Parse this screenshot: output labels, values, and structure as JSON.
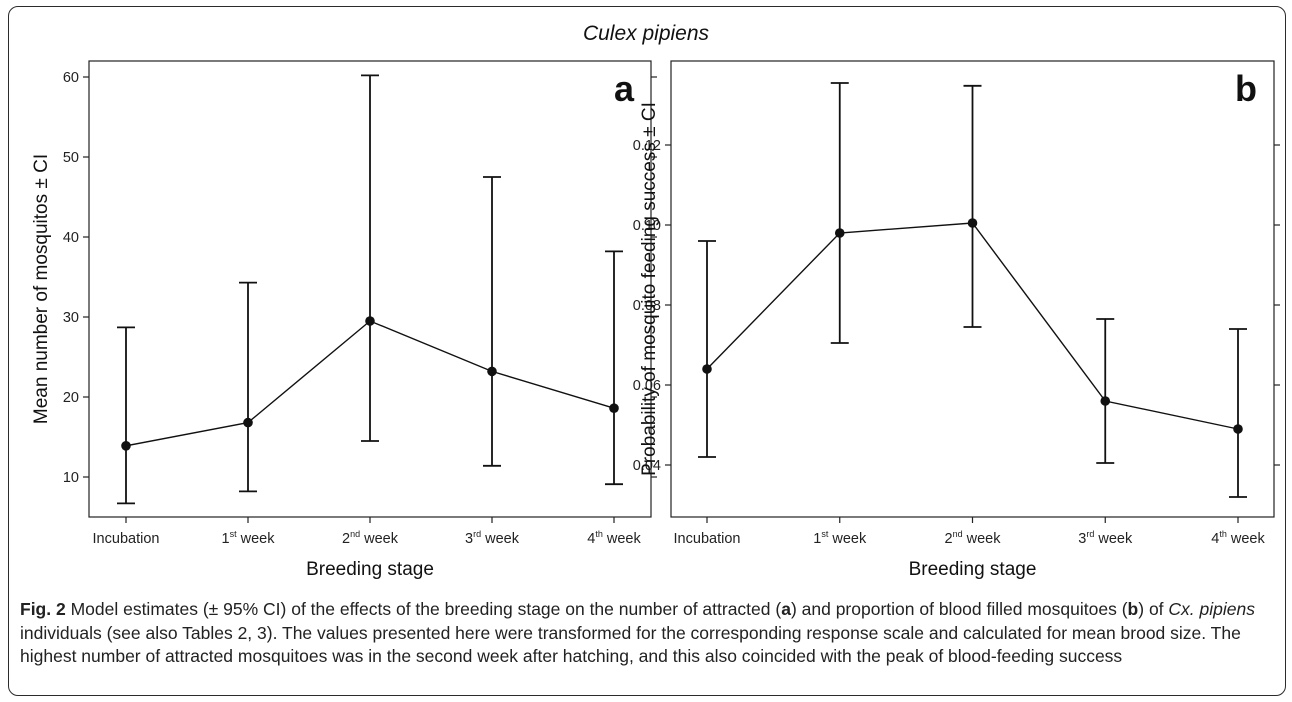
{
  "figure_title": "Culex pipiens",
  "chart_data": [
    {
      "type": "line",
      "panel_label": "a",
      "categories": [
        "Incubation",
        "1st week",
        "2nd week",
        "3rd week",
        "4th week"
      ],
      "category_labels": [
        {
          "base": "Incubation",
          "sup": ""
        },
        {
          "base": "1",
          "sup": "st",
          "rest": " week"
        },
        {
          "base": "2",
          "sup": "nd",
          "rest": " week"
        },
        {
          "base": "3",
          "sup": "rd",
          "rest": " week"
        },
        {
          "base": "4",
          "sup": "th",
          "rest": " week"
        }
      ],
      "series": [
        {
          "values": [
            13.9,
            16.8,
            29.5,
            23.2,
            18.6
          ],
          "ci_lower": [
            6.7,
            8.2,
            14.5,
            11.4,
            9.1
          ],
          "ci_upper": [
            28.7,
            34.3,
            60.2,
            47.5,
            38.2
          ]
        }
      ],
      "xlabel": "Breeding stage",
      "ylabel": "Mean number of mosquitos ± CI",
      "ylim": [
        5,
        62
      ],
      "yticks": [
        10,
        20,
        30,
        40,
        50,
        60
      ],
      "ytick_labels": [
        "10",
        "20",
        "30",
        "40",
        "50",
        "60"
      ],
      "grid": false
    },
    {
      "type": "line",
      "panel_label": "b",
      "categories": [
        "Incubation",
        "1st week",
        "2nd week",
        "3rd week",
        "4th week"
      ],
      "category_labels": [
        {
          "base": "Incubation",
          "sup": ""
        },
        {
          "base": "1",
          "sup": "st",
          "rest": " week"
        },
        {
          "base": "2",
          "sup": "nd",
          "rest": " week"
        },
        {
          "base": "3",
          "sup": "rd",
          "rest": " week"
        },
        {
          "base": "4",
          "sup": "th",
          "rest": " week"
        }
      ],
      "series": [
        {
          "values": [
            0.064,
            0.098,
            0.1005,
            0.056,
            0.049
          ],
          "ci_lower": [
            0.042,
            0.0705,
            0.0745,
            0.0405,
            0.032
          ],
          "ci_upper": [
            0.096,
            0.1355,
            0.1348,
            0.0765,
            0.074
          ]
        }
      ],
      "xlabel": "Breeding stage",
      "ylabel": "Probability of mosquito feeding success ± CI",
      "ylim": [
        0.027,
        0.141
      ],
      "yticks": [
        0.04,
        0.06,
        0.08,
        0.1,
        0.12
      ],
      "ytick_labels": [
        "0.04",
        "0.06",
        "0.08",
        "0.10",
        "0.12"
      ],
      "grid": false
    }
  ],
  "caption": {
    "fig_label": "Fig. 2",
    "p1": " Model estimates (± 95% CI) of the effects of the breeding stage on the number of attracted (",
    "a": "a",
    "p2": ") and proportion of blood filled mosquitoes (",
    "b": "b",
    "p3": ") of ",
    "species": "Cx. pipiens",
    "p4": " individuals (see also Tables 2, 3). The values presented here were transformed for the corresponding response scale and calculated for mean brood size. The highest number of attracted mosquitoes was in the second week after hatching, and this also coincided with the peak of blood-feeding success"
  }
}
